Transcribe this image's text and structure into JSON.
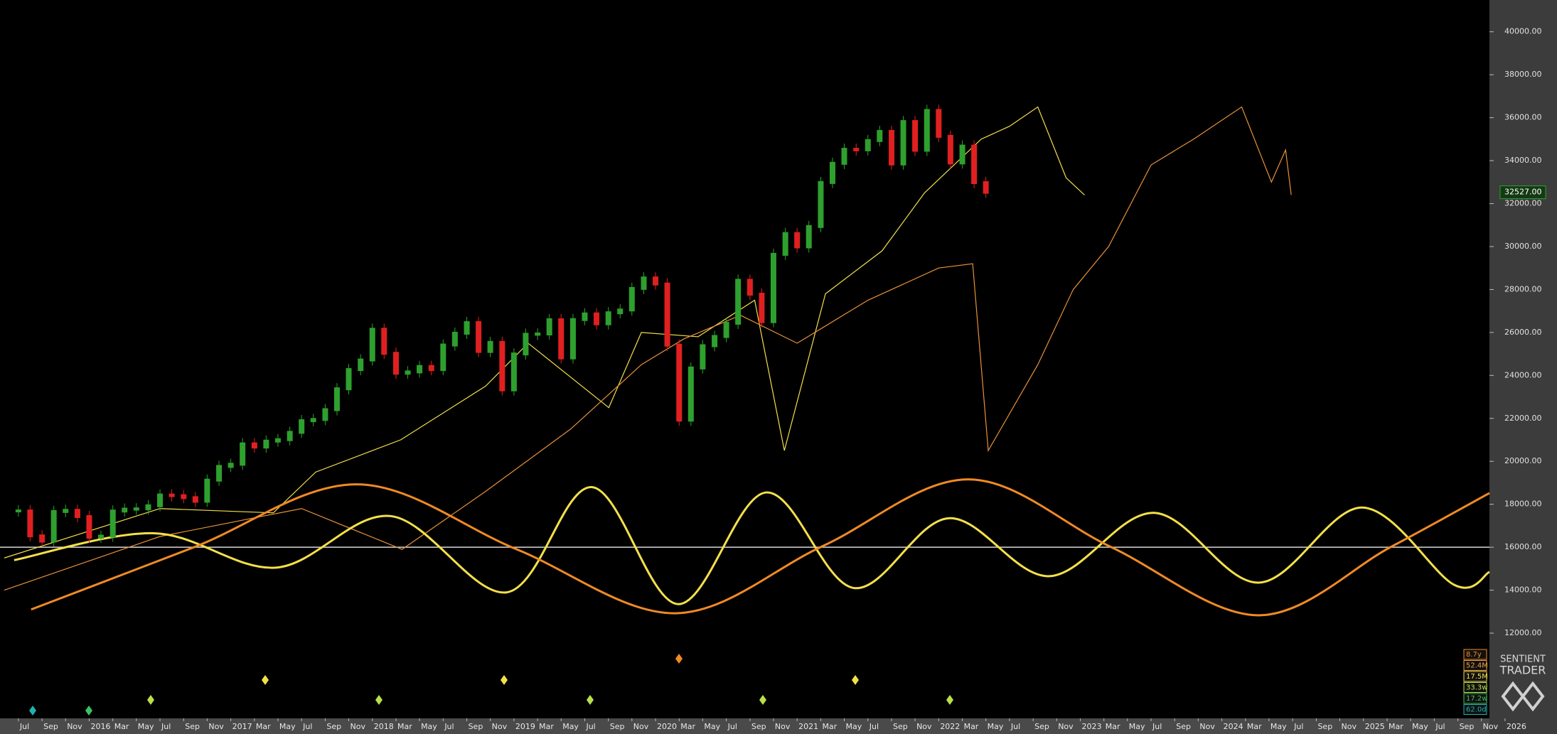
{
  "chart_data": {
    "type": "cycle_projection",
    "xlim": [
      2015.37,
      2025.89
    ],
    "ylim": [
      8130,
      41480
    ],
    "yticks": [
      {
        "value": 12000,
        "label": "12000.00"
      },
      {
        "value": 14000,
        "label": "14000.00"
      },
      {
        "value": 16000,
        "label": "16000.00"
      },
      {
        "value": 18000,
        "label": "18000.00"
      },
      {
        "value": 20000,
        "label": "20000.00"
      },
      {
        "value": 22000,
        "label": "22000.00"
      },
      {
        "value": 24000,
        "label": "24000.00"
      },
      {
        "value": 26000,
        "label": "26000.00"
      },
      {
        "value": 28000,
        "label": "28000.00"
      },
      {
        "value": 30000,
        "label": "30000.00"
      },
      {
        "value": 32000,
        "label": "32000.00"
      },
      {
        "value": 34000,
        "label": "34000.00"
      },
      {
        "value": 36000,
        "label": "36000.00"
      },
      {
        "value": 38000,
        "label": "38000.00"
      },
      {
        "value": 40000,
        "label": "40000.00"
      }
    ],
    "xticks": [
      {
        "value": 2015.5,
        "label": "Jul"
      },
      {
        "value": 2015.667,
        "label": "Sep"
      },
      {
        "value": 2015.833,
        "label": "Nov"
      },
      {
        "value": 2016,
        "label": "2016"
      },
      {
        "value": 2016.167,
        "label": "Mar"
      },
      {
        "value": 2016.333,
        "label": "May"
      },
      {
        "value": 2016.5,
        "label": "Jul"
      },
      {
        "value": 2016.667,
        "label": "Sep"
      },
      {
        "value": 2016.833,
        "label": "Nov"
      },
      {
        "value": 2017,
        "label": "2017"
      },
      {
        "value": 2017.167,
        "label": "Mar"
      },
      {
        "value": 2017.333,
        "label": "May"
      },
      {
        "value": 2017.5,
        "label": "Jul"
      },
      {
        "value": 2017.667,
        "label": "Sep"
      },
      {
        "value": 2017.833,
        "label": "Nov"
      },
      {
        "value": 2018,
        "label": "2018"
      },
      {
        "value": 2018.167,
        "label": "Mar"
      },
      {
        "value": 2018.333,
        "label": "May"
      },
      {
        "value": 2018.5,
        "label": "Jul"
      },
      {
        "value": 2018.667,
        "label": "Sep"
      },
      {
        "value": 2018.833,
        "label": "Nov"
      },
      {
        "value": 2019,
        "label": "2019"
      },
      {
        "value": 2019.167,
        "label": "Mar"
      },
      {
        "value": 2019.333,
        "label": "May"
      },
      {
        "value": 2019.5,
        "label": "Jul"
      },
      {
        "value": 2019.667,
        "label": "Sep"
      },
      {
        "value": 2019.833,
        "label": "Nov"
      },
      {
        "value": 2020,
        "label": "2020"
      },
      {
        "value": 2020.167,
        "label": "Mar"
      },
      {
        "value": 2020.333,
        "label": "May"
      },
      {
        "value": 2020.5,
        "label": "Jul"
      },
      {
        "value": 2020.667,
        "label": "Sep"
      },
      {
        "value": 2020.833,
        "label": "Nov"
      },
      {
        "value": 2021,
        "label": "2021"
      },
      {
        "value": 2021.167,
        "label": "Mar"
      },
      {
        "value": 2021.333,
        "label": "May"
      },
      {
        "value": 2021.5,
        "label": "Jul"
      },
      {
        "value": 2021.667,
        "label": "Sep"
      },
      {
        "value": 2021.833,
        "label": "Nov"
      },
      {
        "value": 2022,
        "label": "2022"
      },
      {
        "value": 2022.167,
        "label": "Mar"
      },
      {
        "value": 2022.333,
        "label": "May"
      },
      {
        "value": 2022.5,
        "label": "Jul"
      },
      {
        "value": 2022.667,
        "label": "Sep"
      },
      {
        "value": 2022.833,
        "label": "Nov"
      },
      {
        "value": 2023,
        "label": "2023"
      },
      {
        "value": 2023.167,
        "label": "Mar"
      },
      {
        "value": 2023.333,
        "label": "May"
      },
      {
        "value": 2023.5,
        "label": "Jul"
      },
      {
        "value": 2023.667,
        "label": "Sep"
      },
      {
        "value": 2023.833,
        "label": "Nov"
      },
      {
        "value": 2024,
        "label": "2024"
      },
      {
        "value": 2024.167,
        "label": "Mar"
      },
      {
        "value": 2024.333,
        "label": "May"
      },
      {
        "value": 2024.5,
        "label": "Jul"
      },
      {
        "value": 2024.667,
        "label": "Sep"
      },
      {
        "value": 2024.833,
        "label": "Nov"
      },
      {
        "value": 2025,
        "label": "2025"
      },
      {
        "value": 2025.167,
        "label": "Mar"
      },
      {
        "value": 2025.333,
        "label": "May"
      },
      {
        "value": 2025.5,
        "label": "Jul"
      },
      {
        "value": 2025.667,
        "label": "Sep"
      },
      {
        "value": 2025.833,
        "label": "Nov"
      },
      {
        "value": 2026,
        "label": "2026"
      }
    ],
    "hline": 16000,
    "price": {
      "up_color": "#2ea02e",
      "down_color": "#e02020",
      "x": [
        2015.5,
        2015.583,
        2015.667,
        2015.75,
        2015.833,
        2015.917,
        2016,
        2016.083,
        2016.167,
        2016.25,
        2016.333,
        2016.417,
        2016.5,
        2016.583,
        2016.667,
        2016.75,
        2016.833,
        2016.917,
        2017,
        2017.083,
        2017.167,
        2017.25,
        2017.333,
        2017.417,
        2017.5,
        2017.583,
        2017.667,
        2017.75,
        2017.833,
        2017.917,
        2018,
        2018.083,
        2018.167,
        2018.25,
        2018.333,
        2018.417,
        2018.5,
        2018.583,
        2018.667,
        2018.75,
        2018.833,
        2018.917,
        2019,
        2019.083,
        2019.167,
        2019.25,
        2019.333,
        2019.417,
        2019.5,
        2019.583,
        2019.667,
        2019.75,
        2019.833,
        2019.917,
        2020,
        2020.083,
        2020.167,
        2020.25,
        2020.333,
        2020.417,
        2020.5,
        2020.583,
        2020.667,
        2020.75,
        2020.833,
        2020.917,
        2021,
        2021.083,
        2021.167,
        2021.25,
        2021.333,
        2021.417,
        2021.5,
        2021.583,
        2021.667,
        2021.75,
        2021.833,
        2021.917,
        2022,
        2022.083,
        2022.167,
        2022.25,
        2022.333
      ],
      "values": [
        17690,
        16528,
        16284,
        17663,
        17719,
        17425,
        16466,
        16517,
        17685,
        17773,
        17787,
        17930,
        18432,
        18400,
        18308,
        18142,
        19124,
        19763,
        19864,
        20812,
        20663,
        20941,
        21009,
        21350,
        21891,
        21948,
        22405,
        23377,
        24272,
        24719,
        26149,
        25029,
        24103,
        24163,
        24416,
        24271,
        25415,
        25965,
        26458,
        25116,
        25538,
        23327,
        24999,
        25916,
        25929,
        26593,
        24815,
        26600,
        26864,
        26403,
        26917,
        27046,
        28051,
        28538,
        28256,
        25409,
        21917,
        24346,
        25383,
        25813,
        26428,
        28430,
        27782,
        26502,
        29638,
        30606,
        29983,
        30932,
        32982,
        33875,
        34529,
        34503,
        34935,
        35361,
        33844,
        35820,
        34484,
        36338,
        35132,
        33893,
        34678,
        32977,
        32527
      ]
    },
    "last_price": {
      "value": 32527,
      "label": "32527.00"
    },
    "series": [
      {
        "color": "#f4e04a",
        "width": 1.2,
        "x": [
          2015.4,
          2016.5,
          2017.3,
          2017.6,
          2018.2,
          2018.8,
          2019.1,
          2019.67,
          2019.9,
          2020.3,
          2020.7,
          2020.91,
          2021.2,
          2021.6,
          2021.9,
          2022.3,
          2022.5,
          2022.7,
          2022.9,
          2023.03
        ],
        "values": [
          15500,
          17800,
          17600,
          19500,
          21000,
          23500,
          25500,
          22500,
          26000,
          25800,
          27500,
          20500,
          27800,
          29800,
          32500,
          35000,
          35600,
          36500,
          33200,
          32400
        ]
      },
      {
        "color": "#e8913a",
        "width": 1.2,
        "x": [
          2015.4,
          2016.5,
          2017.5,
          2018.21,
          2018.8,
          2019.4,
          2019.9,
          2020.2,
          2020.6,
          2021.0,
          2021.5,
          2022.0,
          2022.24,
          2022.35,
          2022.7,
          2022.95,
          2023.2,
          2023.5,
          2023.8,
          2024.14,
          2024.35,
          2024.45,
          2024.49
        ],
        "values": [
          14000,
          16500,
          17800,
          15900,
          18600,
          21500,
          24500,
          25700,
          26800,
          25500,
          27500,
          29000,
          29200,
          20500,
          24500,
          28000,
          30000,
          33800,
          35000,
          36500,
          33000,
          34500,
          32400
        ]
      },
      {
        "color": "#f4e04a",
        "width": 3,
        "x": [
          2015.47,
          2016.46,
          2017.32,
          2018.13,
          2018.95,
          2019.55,
          2020.16,
          2020.78,
          2021.4,
          2022.07,
          2022.78,
          2023.52,
          2024.26,
          2024.99,
          2025.64,
          2025.89
        ],
        "values": [
          15400,
          16650,
          15050,
          17450,
          13900,
          18800,
          13350,
          18550,
          14100,
          17350,
          14650,
          17600,
          14350,
          17850,
          14250,
          14850
        ]
      },
      {
        "color": "#f08a24",
        "width": 3,
        "x": [
          2015.59,
          2016.74,
          2017.89,
          2019.02,
          2020.14,
          2021.18,
          2022.21,
          2023.22,
          2024.26,
          2025.19,
          2025.89
        ],
        "values": [
          13100,
          16000,
          18930,
          15900,
          12925,
          16050,
          19160,
          16000,
          12830,
          16000,
          18520
        ]
      }
    ],
    "periods": [
      {
        "label": "8.7y",
        "color": "#f08a24"
      },
      {
        "label": "52.4M",
        "color": "#f0a040"
      },
      {
        "label": "17.5M",
        "color": "#f4e04a"
      },
      {
        "label": "33.3w",
        "color": "#b8e04a"
      },
      {
        "label": "17.2w",
        "color": "#40c060"
      },
      {
        "label": "62.0d",
        "color": "#20b0b0"
      }
    ],
    "logo": [
      "SENTIENT",
      "TRADER"
    ]
  }
}
